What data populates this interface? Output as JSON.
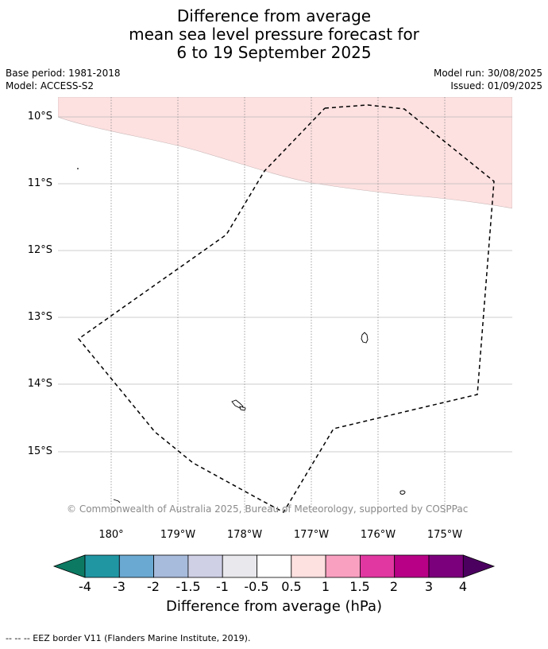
{
  "title": {
    "line1": "Difference from average",
    "line2": "mean sea level pressure forecast for",
    "line3": "6 to 19 September 2025"
  },
  "meta": {
    "base_period": "Base period: 1981-2018",
    "model": "Model: ACCESS-S2",
    "model_run": "Model run: 30/08/2025",
    "issued": "Issued: 01/09/2025"
  },
  "map": {
    "lat_labels": [
      "10°S",
      "11°S",
      "12°S",
      "13°S",
      "14°S",
      "15°S"
    ],
    "lon_labels": [
      "180°",
      "179°W",
      "178°W",
      "177°W",
      "176°W",
      "175°W"
    ],
    "anomaly_fill_color": "#fde0e0",
    "anomaly_band": "0.5 to 1",
    "eez_border_style": "dashed black",
    "copyright": "© Commonwealth of Australia 2025, Bureau of Meteorology, supported by COSPPac"
  },
  "colorbar": {
    "ticks": [
      "-4",
      "-3",
      "-2",
      "-1.5",
      "-1",
      "-0.5",
      "0.5",
      "1",
      "1.5",
      "2",
      "3",
      "4"
    ],
    "colors": [
      "#0c7a63",
      "#2196a3",
      "#6aa9d2",
      "#a7bbdc",
      "#cfd0e6",
      "#e9e8ec",
      "#ffffff",
      "#fde0e0",
      "#f9a0c0",
      "#e137a0",
      "#b70086",
      "#7b007c",
      "#4b0060"
    ],
    "label": "Difference from average (hPa)"
  },
  "legend_note": "--  --  -- EEZ border V11 (Flanders Marine Institute, 2019)."
}
